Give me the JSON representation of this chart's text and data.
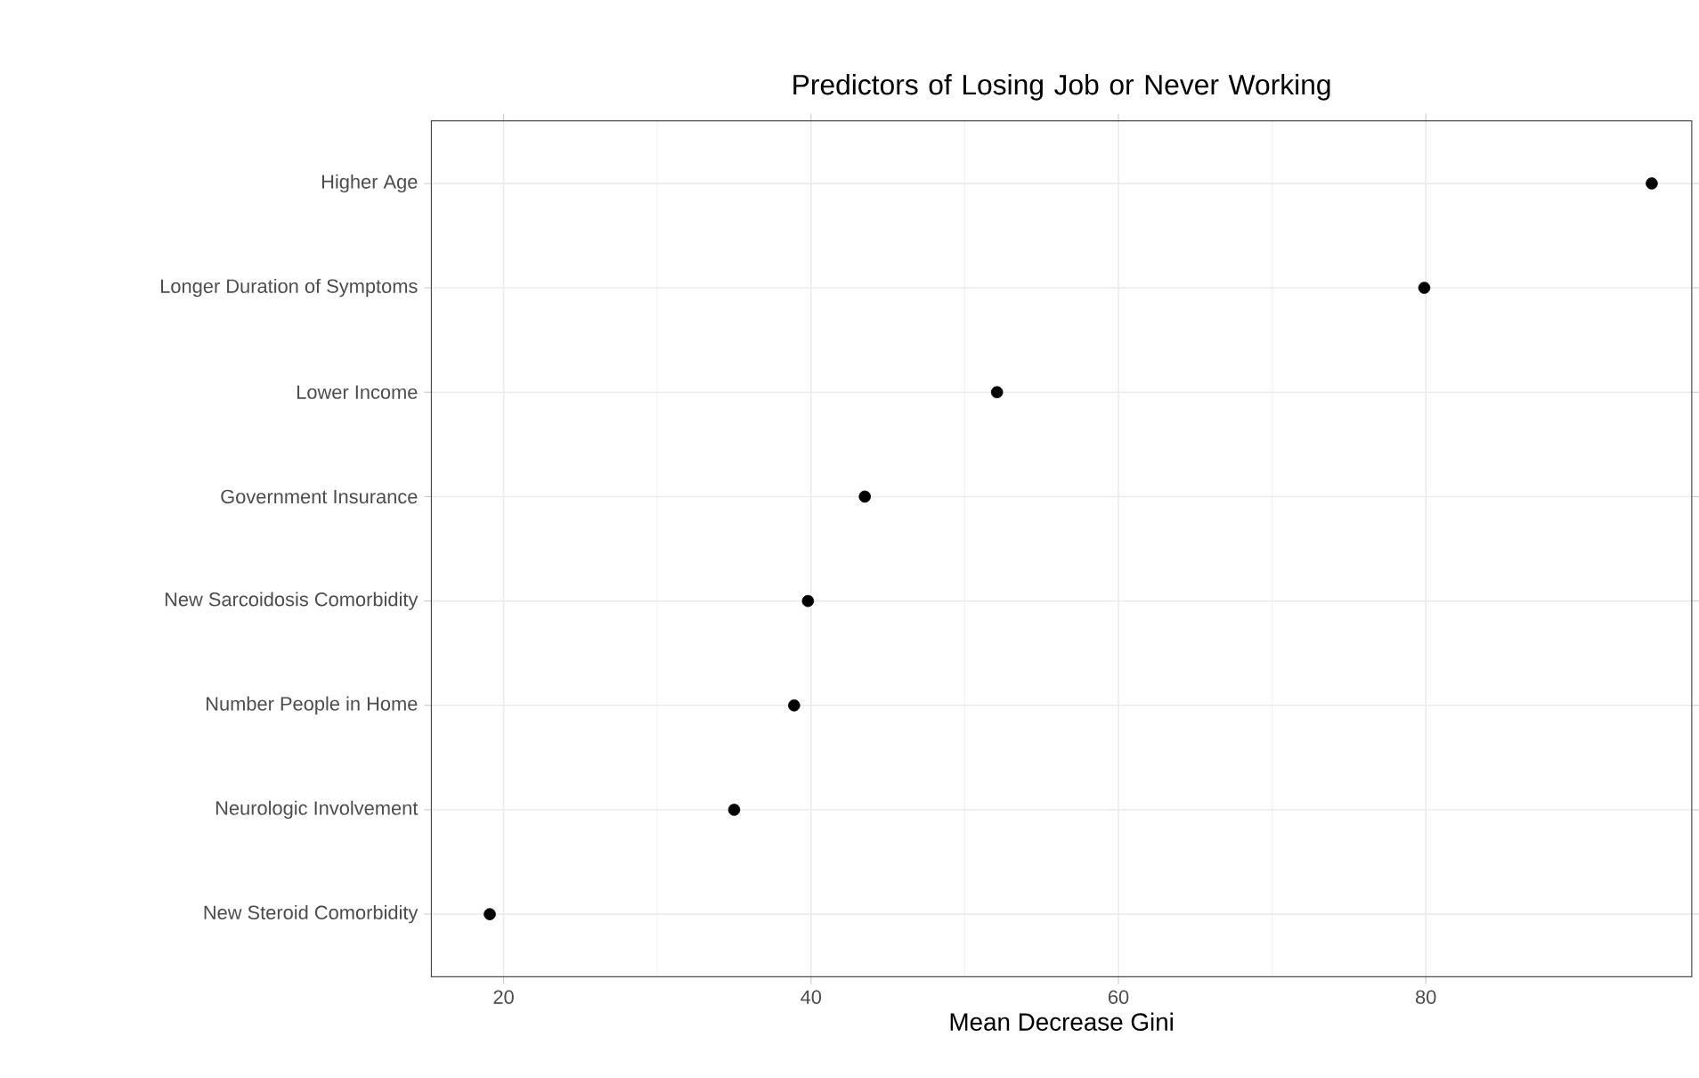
{
  "chart_data": {
    "type": "scatter",
    "orientation": "horizontal",
    "title": "Predictors of Losing Job or Never Working",
    "xlabel": "Mean Decrease Gini",
    "categories": [
      "Higher Age",
      "Longer Duration of Symptoms",
      "Lower Income",
      "Government Insurance",
      "New Sarcoidosis Comorbidity",
      "Number People in Home",
      "Neurologic Involvement",
      "New Steroid Comorbidity"
    ],
    "values": [
      94.7,
      79.9,
      52.1,
      43.5,
      39.8,
      38.9,
      35.0,
      19.1
    ],
    "color": "#000000",
    "marker": "circle",
    "xlim": [
      15.3,
      97.3
    ],
    "xticks": [
      20,
      40,
      60,
      80
    ],
    "grid": true
  }
}
